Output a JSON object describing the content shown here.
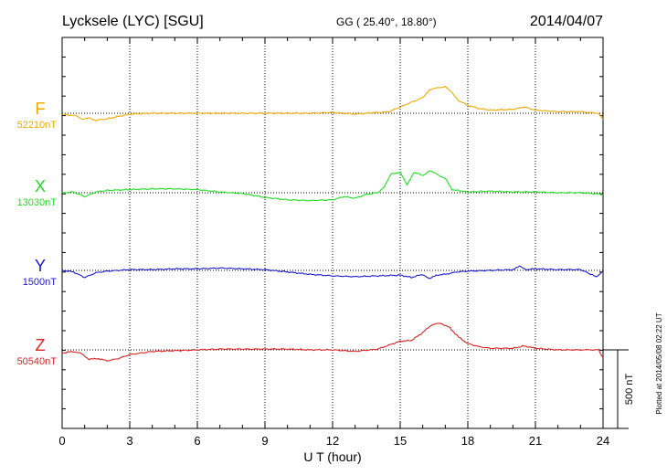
{
  "header": {
    "station": "Lycksele (LYC)  [SGU]",
    "coords": "GG ( 25.40°,  18.80°)",
    "date": "2014/04/07"
  },
  "plotted_note": "Plotted at 2014/05/08 02:22 UT",
  "scale_label": "500 nT",
  "chart_data": {
    "type": "line",
    "xlabel": "U T (hour)",
    "xlim": [
      0,
      24
    ],
    "xticks": [
      0,
      3,
      6,
      9,
      12,
      15,
      18,
      21,
      24
    ],
    "minor_tick_step_hours": 1,
    "grid": "vertical dotted lines at every 3 hours",
    "scale_bar_nT": 500,
    "series": [
      {
        "name": "F",
        "baseline": "52210nT",
        "color": "#f0a800",
        "x": [
          0,
          0.3,
          0.6,
          0.9,
          1.2,
          1.5,
          2.0,
          2.5,
          3.0,
          4,
          5,
          6,
          7,
          8,
          9,
          10,
          11,
          12,
          13,
          14,
          14.5,
          15.0,
          15.5,
          16.0,
          16.3,
          16.6,
          17.0,
          17.3,
          17.6,
          18.0,
          18.5,
          19,
          20,
          20.5,
          21,
          22,
          23,
          23.8,
          24
        ],
        "values": [
          -5,
          -15,
          -10,
          -40,
          -30,
          -45,
          -35,
          -20,
          -5,
          0,
          0,
          0,
          0,
          0,
          0,
          0,
          0,
          5,
          -5,
          5,
          10,
          40,
          70,
          100,
          150,
          160,
          170,
          130,
          80,
          50,
          30,
          20,
          25,
          40,
          20,
          10,
          10,
          0,
          -40
        ]
      },
      {
        "name": "X",
        "baseline": "13030nT",
        "color": "#22dd22",
        "x": [
          0,
          0.5,
          1.0,
          1.5,
          2,
          3,
          4,
          5,
          6,
          7,
          8,
          9,
          10,
          11,
          12,
          12.5,
          13,
          13.5,
          14,
          14.3,
          14.6,
          15.0,
          15.3,
          15.6,
          16.0,
          16.3,
          16.6,
          17.0,
          17.3,
          18,
          19,
          20,
          21,
          22,
          23,
          24
        ],
        "values": [
          0,
          5,
          -25,
          5,
          15,
          20,
          25,
          25,
          20,
          5,
          -5,
          -30,
          -45,
          -50,
          -45,
          -25,
          -35,
          -10,
          0,
          40,
          120,
          130,
          50,
          130,
          110,
          140,
          120,
          90,
          20,
          5,
          10,
          5,
          5,
          0,
          0,
          -10
        ]
      },
      {
        "name": "Y",
        "baseline": "1500nT",
        "color": "#1a1acc",
        "x": [
          0,
          0.5,
          1.0,
          1.5,
          2,
          3,
          4,
          5,
          6,
          7,
          8,
          9,
          10,
          11,
          12,
          13,
          14,
          15,
          15.5,
          16,
          16.3,
          16.6,
          17,
          17.5,
          18,
          19,
          20,
          20.3,
          20.6,
          21,
          22,
          23,
          23.7,
          24
        ],
        "values": [
          0,
          -10,
          -45,
          -15,
          -5,
          5,
          5,
          10,
          10,
          15,
          10,
          5,
          -10,
          -25,
          -35,
          -40,
          -35,
          -30,
          -45,
          -25,
          -55,
          -30,
          -25,
          -10,
          -5,
          0,
          5,
          25,
          5,
          10,
          5,
          5,
          -40,
          -5
        ]
      },
      {
        "name": "Z",
        "baseline": "50540nT",
        "color": "#dd2222",
        "x": [
          0,
          0.5,
          0.8,
          1.2,
          1.6,
          2.0,
          2.5,
          3,
          4,
          5,
          6,
          7,
          8,
          9,
          10,
          11,
          12,
          13,
          14,
          14.5,
          15.0,
          15.5,
          16.0,
          16.4,
          16.8,
          17.2,
          17.6,
          18.0,
          18.5,
          19,
          20,
          20.5,
          21,
          22,
          23,
          23.8,
          24
        ],
        "values": [
          -20,
          -10,
          -20,
          -60,
          -55,
          -70,
          -55,
          -30,
          -10,
          -5,
          0,
          5,
          5,
          5,
          5,
          0,
          0,
          -10,
          5,
          30,
          55,
          60,
          110,
          160,
          170,
          140,
          80,
          40,
          20,
          10,
          10,
          25,
          10,
          0,
          0,
          0,
          -50
        ]
      }
    ]
  }
}
